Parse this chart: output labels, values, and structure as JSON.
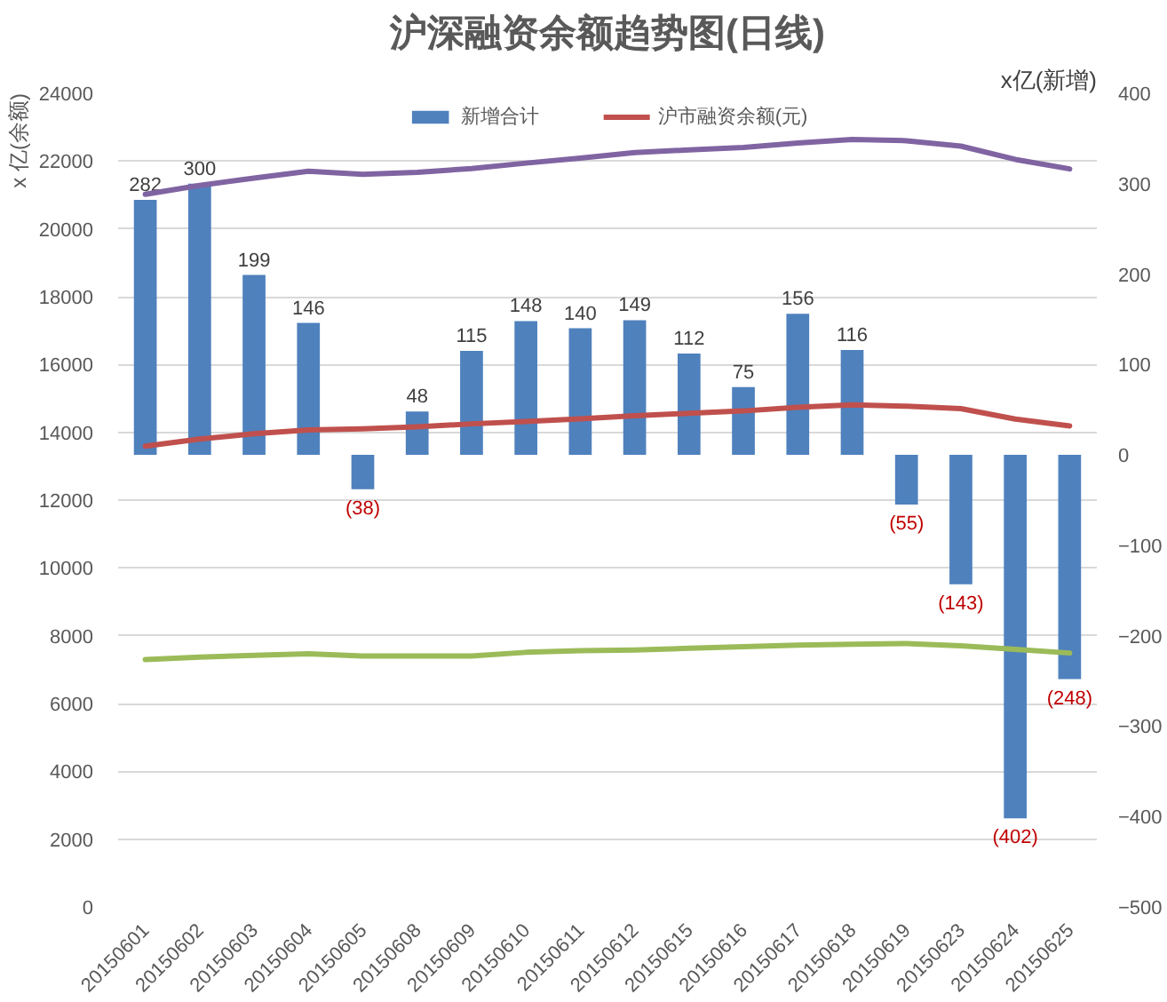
{
  "chart_data": {
    "type": "bar",
    "title": "沪深融资余额趋势图(日线)",
    "ylabel": "x 亿(余额)",
    "y2label": "x亿(新增)",
    "categories": [
      "20150601",
      "20150602",
      "20150603",
      "20150604",
      "20150605",
      "20150608",
      "20150609",
      "20150610",
      "20150611",
      "20150612",
      "20150615",
      "20150616",
      "20150617",
      "20150618",
      "20150619",
      "20150623",
      "20150624",
      "20150625"
    ],
    "series": [
      {
        "name": "新增合计",
        "axis": "y2",
        "color": "#4f81bd",
        "values": [
          282,
          300,
          199,
          146,
          -38,
          48,
          115,
          148,
          140,
          149,
          112,
          75,
          156,
          116,
          -55,
          -143,
          -402,
          -248
        ],
        "value_labels": [
          "282",
          "300",
          "199",
          "146",
          "(38)",
          "48",
          "115",
          "148",
          "140",
          "149",
          "112",
          "75",
          "156",
          "116",
          "(55)",
          "(143)",
          "(402)",
          "(248)"
        ]
      },
      {
        "type": "line",
        "color": "#8064a2",
        "values": [
          21020,
          21280,
          21500,
          21700,
          21610,
          21670,
          21780,
          21940,
          22090,
          22250,
          22330,
          22400,
          22530,
          22640,
          22600,
          22440,
          22050,
          21770
        ]
      },
      {
        "name": "沪市融资余额(元)",
        "type": "line",
        "color": "#c0504d",
        "values": [
          13590,
          13800,
          13960,
          14070,
          14100,
          14160,
          14250,
          14320,
          14400,
          14490,
          14560,
          14630,
          14740,
          14810,
          14770,
          14700,
          14390,
          14190
        ]
      },
      {
        "type": "line",
        "color": "#9bbb59",
        "values": [
          7300,
          7370,
          7420,
          7470,
          7400,
          7400,
          7400,
          7510,
          7560,
          7580,
          7630,
          7680,
          7720,
          7750,
          7770,
          7700,
          7600,
          7490
        ]
      }
    ],
    "ylim": [
      0,
      24000
    ],
    "yticks": [
      0,
      2000,
      4000,
      6000,
      8000,
      10000,
      12000,
      14000,
      16000,
      18000,
      20000,
      22000,
      24000
    ],
    "y2lim": [
      -500,
      400
    ],
    "y2ticks": [
      -500,
      -400,
      -300,
      -200,
      -100,
      0,
      100,
      200,
      300,
      400
    ],
    "grid": "y",
    "legend": "top"
  }
}
